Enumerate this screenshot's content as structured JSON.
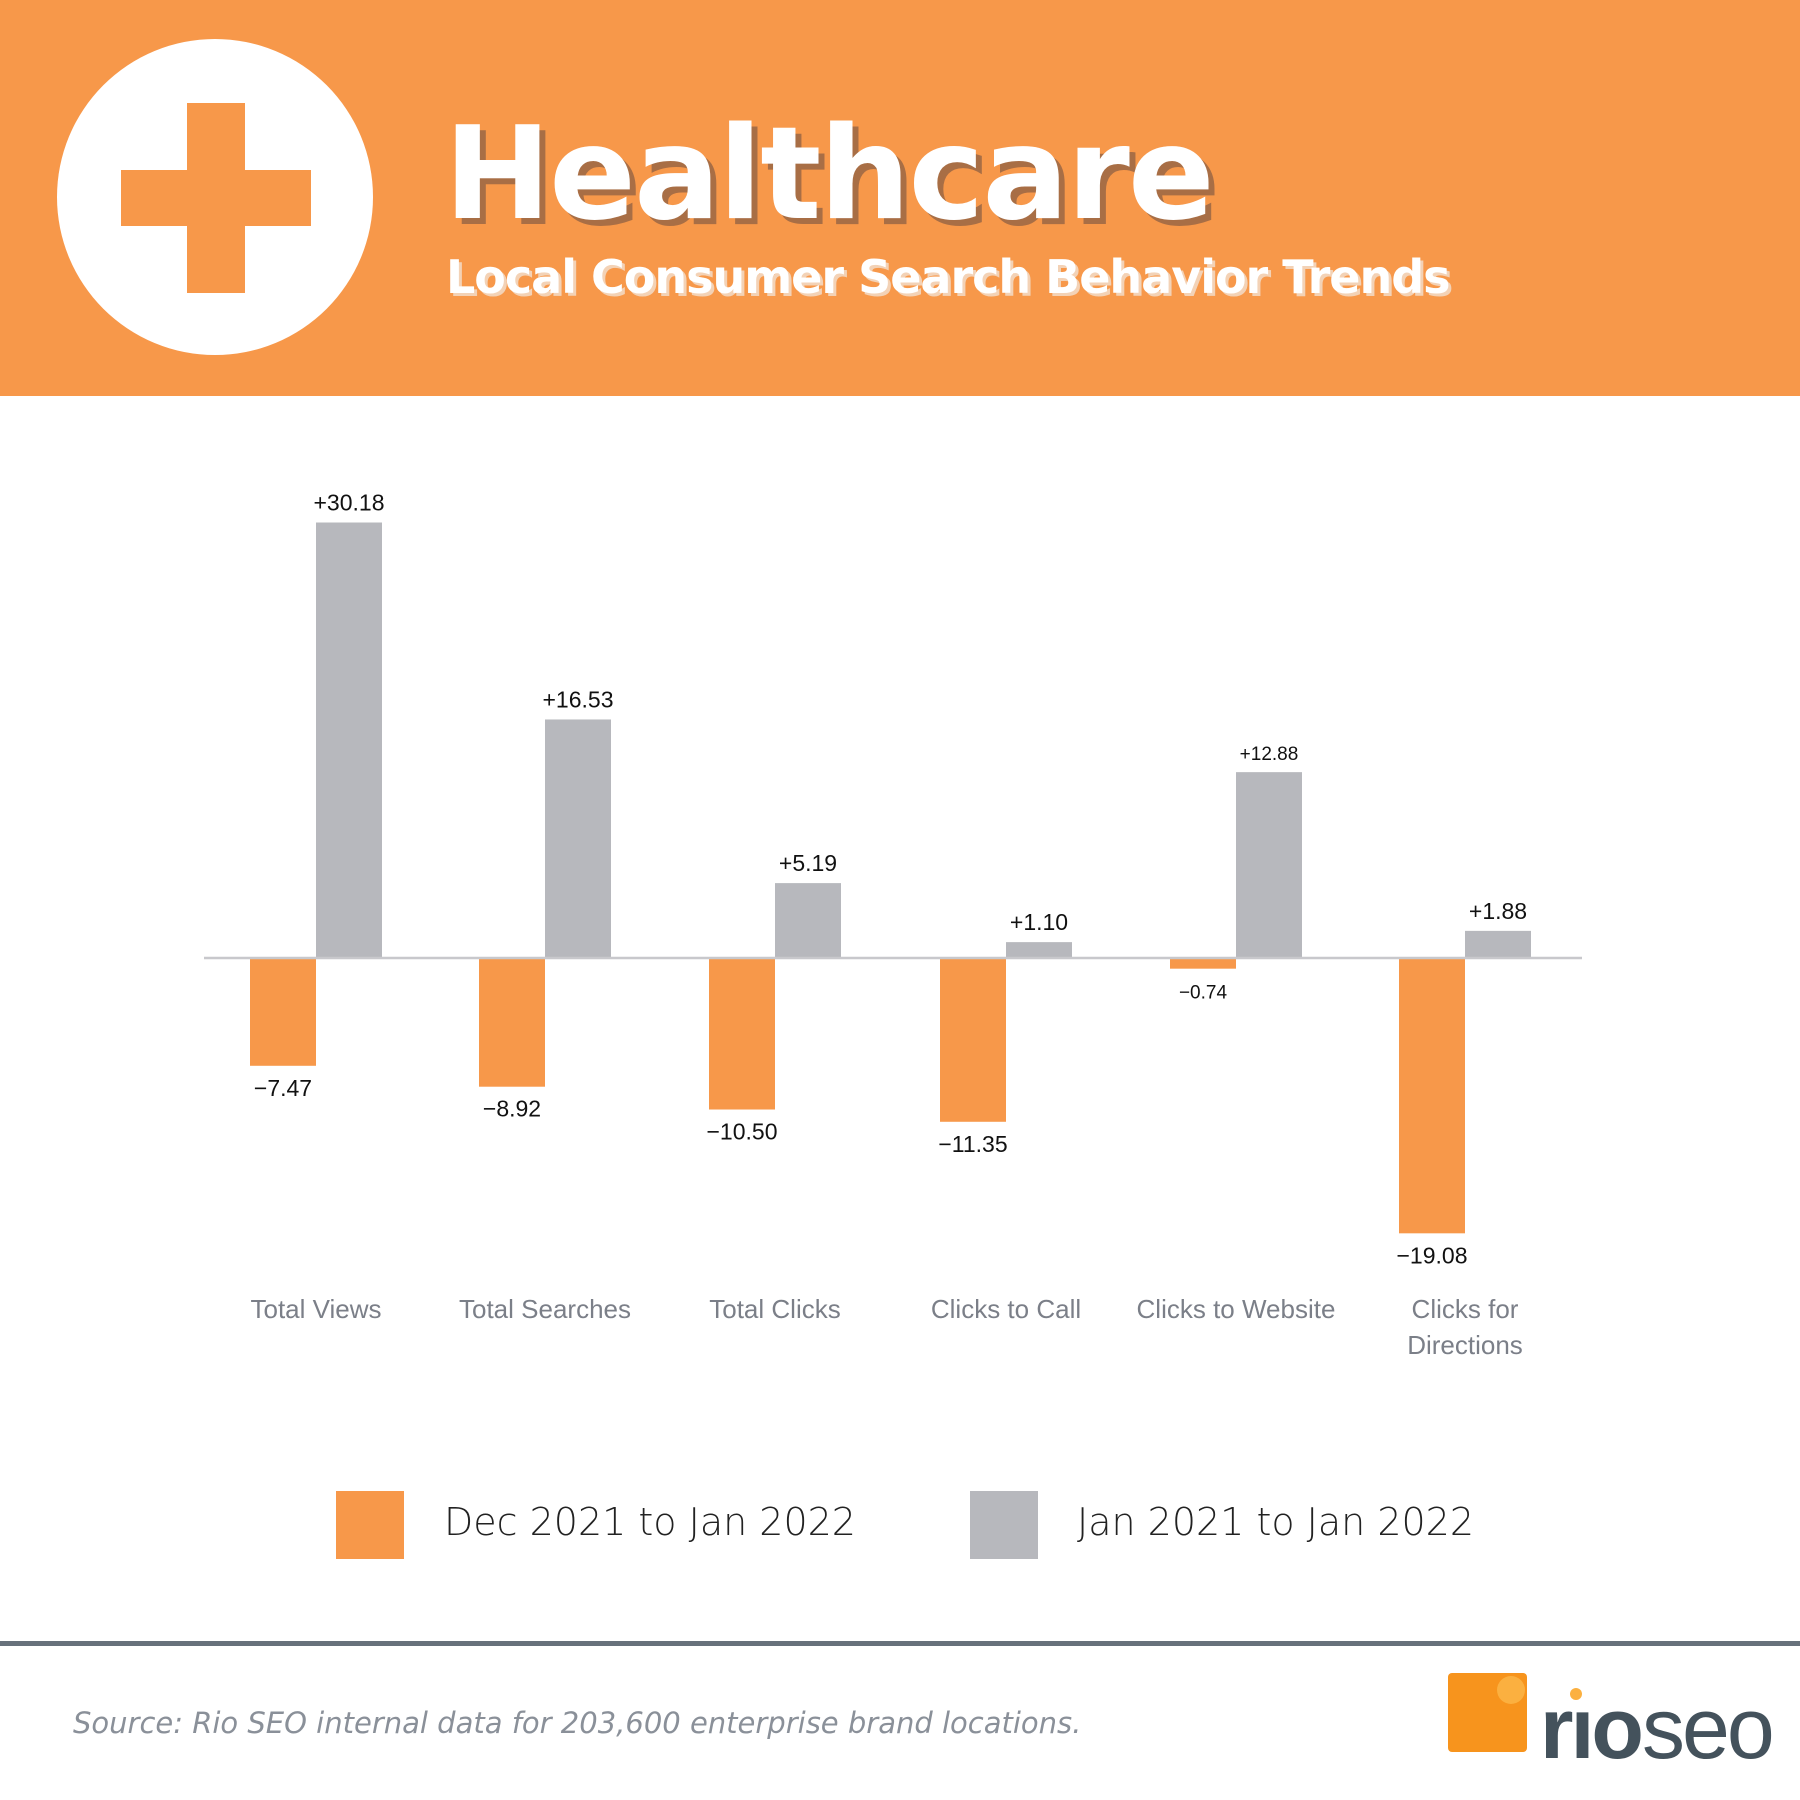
{
  "header": {
    "icon": "medical-cross-icon",
    "title": "Healthcare",
    "subtitle": "Local Consumer Search Behavior Trends"
  },
  "colors": {
    "header": "#f7984a",
    "series1": "#f7984a",
    "series2": "#b7b8bd",
    "axis": "#c8c8cc",
    "category_text": "#7b7f88"
  },
  "chart_data": {
    "type": "bar",
    "categories": [
      "Total Views",
      "Total Searches",
      "Total Clicks",
      "Clicks to Call",
      "Clicks to Website",
      "Clicks for Directions"
    ],
    "series": [
      {
        "name": "Dec 2021 to Jan 2022",
        "color": "#f7984a",
        "values": [
          -7.47,
          -8.92,
          -10.5,
          -11.35,
          -0.74,
          -19.08
        ],
        "labels": [
          "−7.47",
          "−8.92",
          "−10.50",
          "−11.35",
          "−0.74",
          "−19.08"
        ]
      },
      {
        "name": "Jan 2021 to Jan 2022",
        "color": "#b7b8bd",
        "values": [
          30.18,
          16.53,
          5.19,
          1.1,
          12.88,
          1.88
        ],
        "labels": [
          "+30.18",
          "+16.53",
          "+5.19",
          "+1.10",
          "+12.88",
          "+1.88"
        ]
      }
    ],
    "title": "",
    "xlabel": "",
    "ylabel": "",
    "ylim": [
      -20,
      31
    ],
    "grid": false,
    "legend": "bottom"
  },
  "footer": {
    "source": "Source: Rio SEO internal data for 203,600 enterprise brand locations.",
    "logo": "rio seo"
  }
}
